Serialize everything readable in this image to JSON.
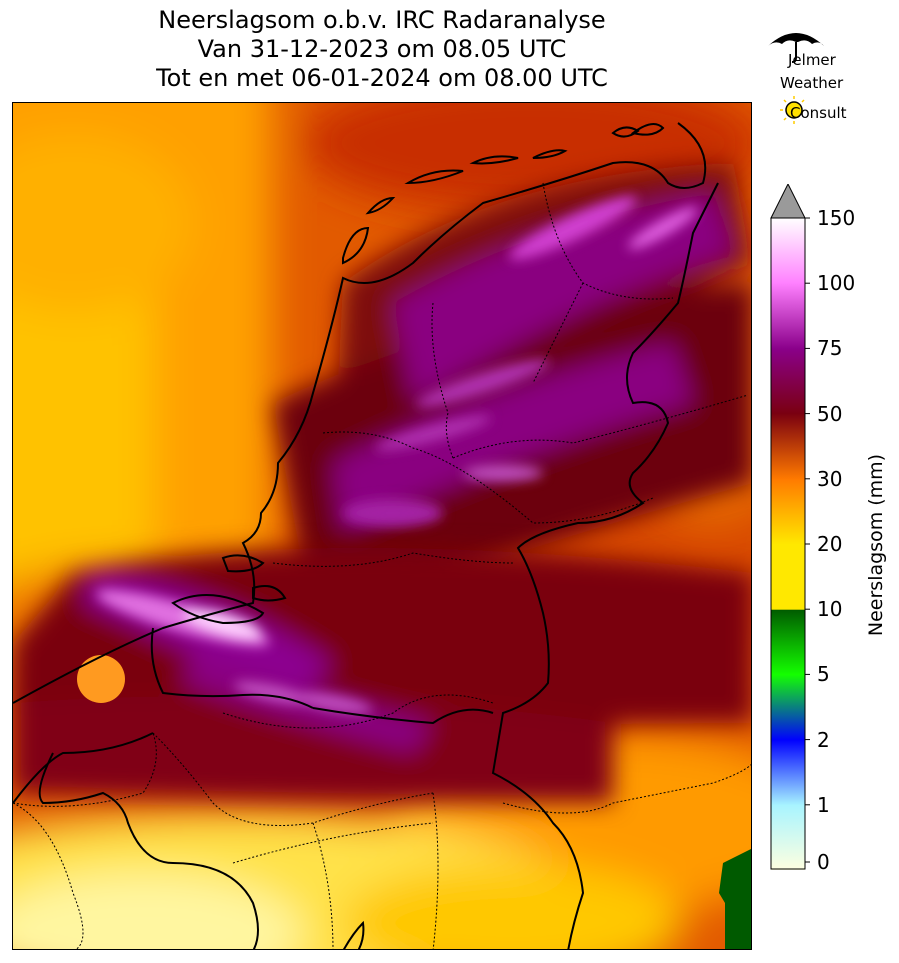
{
  "title": {
    "line1": "Neerslagsom o.b.v. IRC Radaranalyse",
    "line2": "Van 31-12-2023 om 08.05 UTC",
    "line3": "Tot en met 06-01-2024 om 08.00 UTC"
  },
  "logo": {
    "icon": "umbrella-icon",
    "sun_icon": "sun-icon",
    "line1": "Jelmer",
    "line2": "Weather",
    "line3": "Consult"
  },
  "colorbar": {
    "label": "Neerslagsom (mm)",
    "ticks": [
      "0",
      "1",
      "2",
      "5",
      "10",
      "20",
      "30",
      "50",
      "75",
      "100",
      "150"
    ],
    "extend": "max",
    "colors": {
      "low": "#ffffe0",
      "light_blue": "#a8f4ff",
      "blue": "#0000ff",
      "green": "#14ff00",
      "dark_green": "#005a00",
      "yellow": "#ffe800",
      "orange": "#ff7a00",
      "dark_red": "#7a0010",
      "purple": "#8a008a",
      "pink": "#ff80ff",
      "white": "#ffffff",
      "grey": "#9a9a9a"
    }
  },
  "map": {
    "region": "Netherlands",
    "boundaries": [
      "coastline",
      "national-border",
      "province-borders"
    ]
  }
}
